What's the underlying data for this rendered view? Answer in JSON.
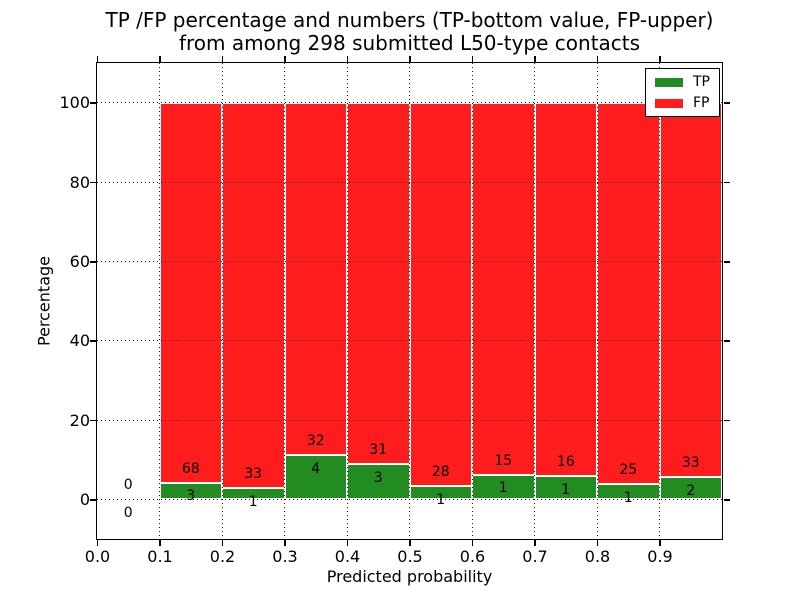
{
  "title": {
    "line1": "TP /FP percentage and numbers (TP-bottom value, FP-upper)",
    "line2": "from among 298 submitted L50-type contacts"
  },
  "axes": {
    "xlabel": "Predicted probability",
    "ylabel": "Percentage",
    "x_tick_labels": [
      "0.0",
      "0.1",
      "0.2",
      "0.3",
      "0.4",
      "0.5",
      "0.6",
      "0.7",
      "0.8",
      "0.9"
    ],
    "y_tick_labels": [
      "0",
      "20",
      "40",
      "60",
      "80",
      "100"
    ]
  },
  "legend": {
    "items": [
      {
        "label": "TP",
        "color": "#228b22"
      },
      {
        "label": "FP",
        "color": "#ff1c1c"
      }
    ]
  },
  "chart_data": {
    "type": "bar",
    "stacked": true,
    "title": "TP /FP percentage and numbers (TP-bottom value, FP-upper) from among 298 submitted L50-type contacts",
    "xlabel": "Predicted probability",
    "ylabel": "Percentage",
    "xlim": [
      0.0,
      1.0
    ],
    "ylim": [
      -10,
      110
    ],
    "grid": "dotted, drawn above bars",
    "legend_position": "upper right",
    "total_contacts": 298,
    "bin_width": 0.1,
    "bin_x_start": [
      0.0,
      0.1,
      0.2,
      0.3,
      0.4,
      0.5,
      0.6,
      0.7,
      0.8,
      0.9
    ],
    "series": [
      {
        "name": "TP",
        "color": "#228b22",
        "counts": [
          0,
          3,
          1,
          4,
          3,
          1,
          1,
          1,
          1,
          2
        ],
        "pct": [
          0,
          4.23,
          2.94,
          11.11,
          8.82,
          3.45,
          6.25,
          5.88,
          3.85,
          5.71
        ]
      },
      {
        "name": "FP",
        "color": "#ff1c1c",
        "counts": [
          0,
          68,
          33,
          32,
          31,
          28,
          15,
          16,
          25,
          33
        ],
        "pct": [
          0,
          95.77,
          97.06,
          88.89,
          91.18,
          96.55,
          93.75,
          94.12,
          96.15,
          94.29
        ]
      }
    ]
  }
}
